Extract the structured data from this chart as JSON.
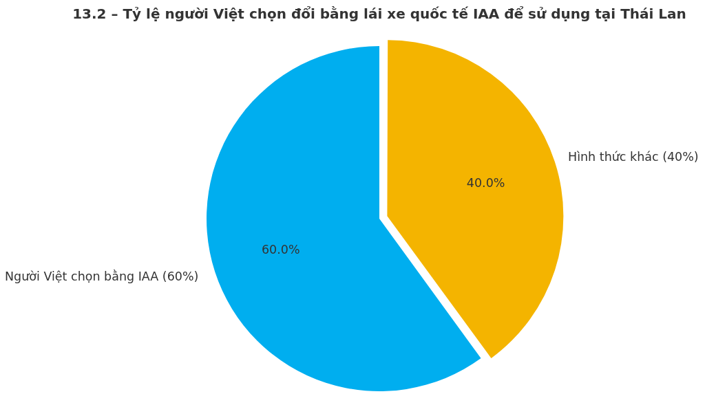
{
  "chart_data": {
    "type": "pie",
    "title": "13.2 – Tỷ lệ người Việt chọn đổi bằng lái xe quốc tế IAA để sử dụng tại Thái Lan",
    "categories": [
      "Người Việt chọn bằng IAA (60%)",
      "Hình thức khác (40%)"
    ],
    "values": [
      60,
      40
    ],
    "colors": [
      "#00aeef",
      "#f4b400"
    ],
    "value_labels": [
      "60.0%",
      "40.0%"
    ]
  }
}
